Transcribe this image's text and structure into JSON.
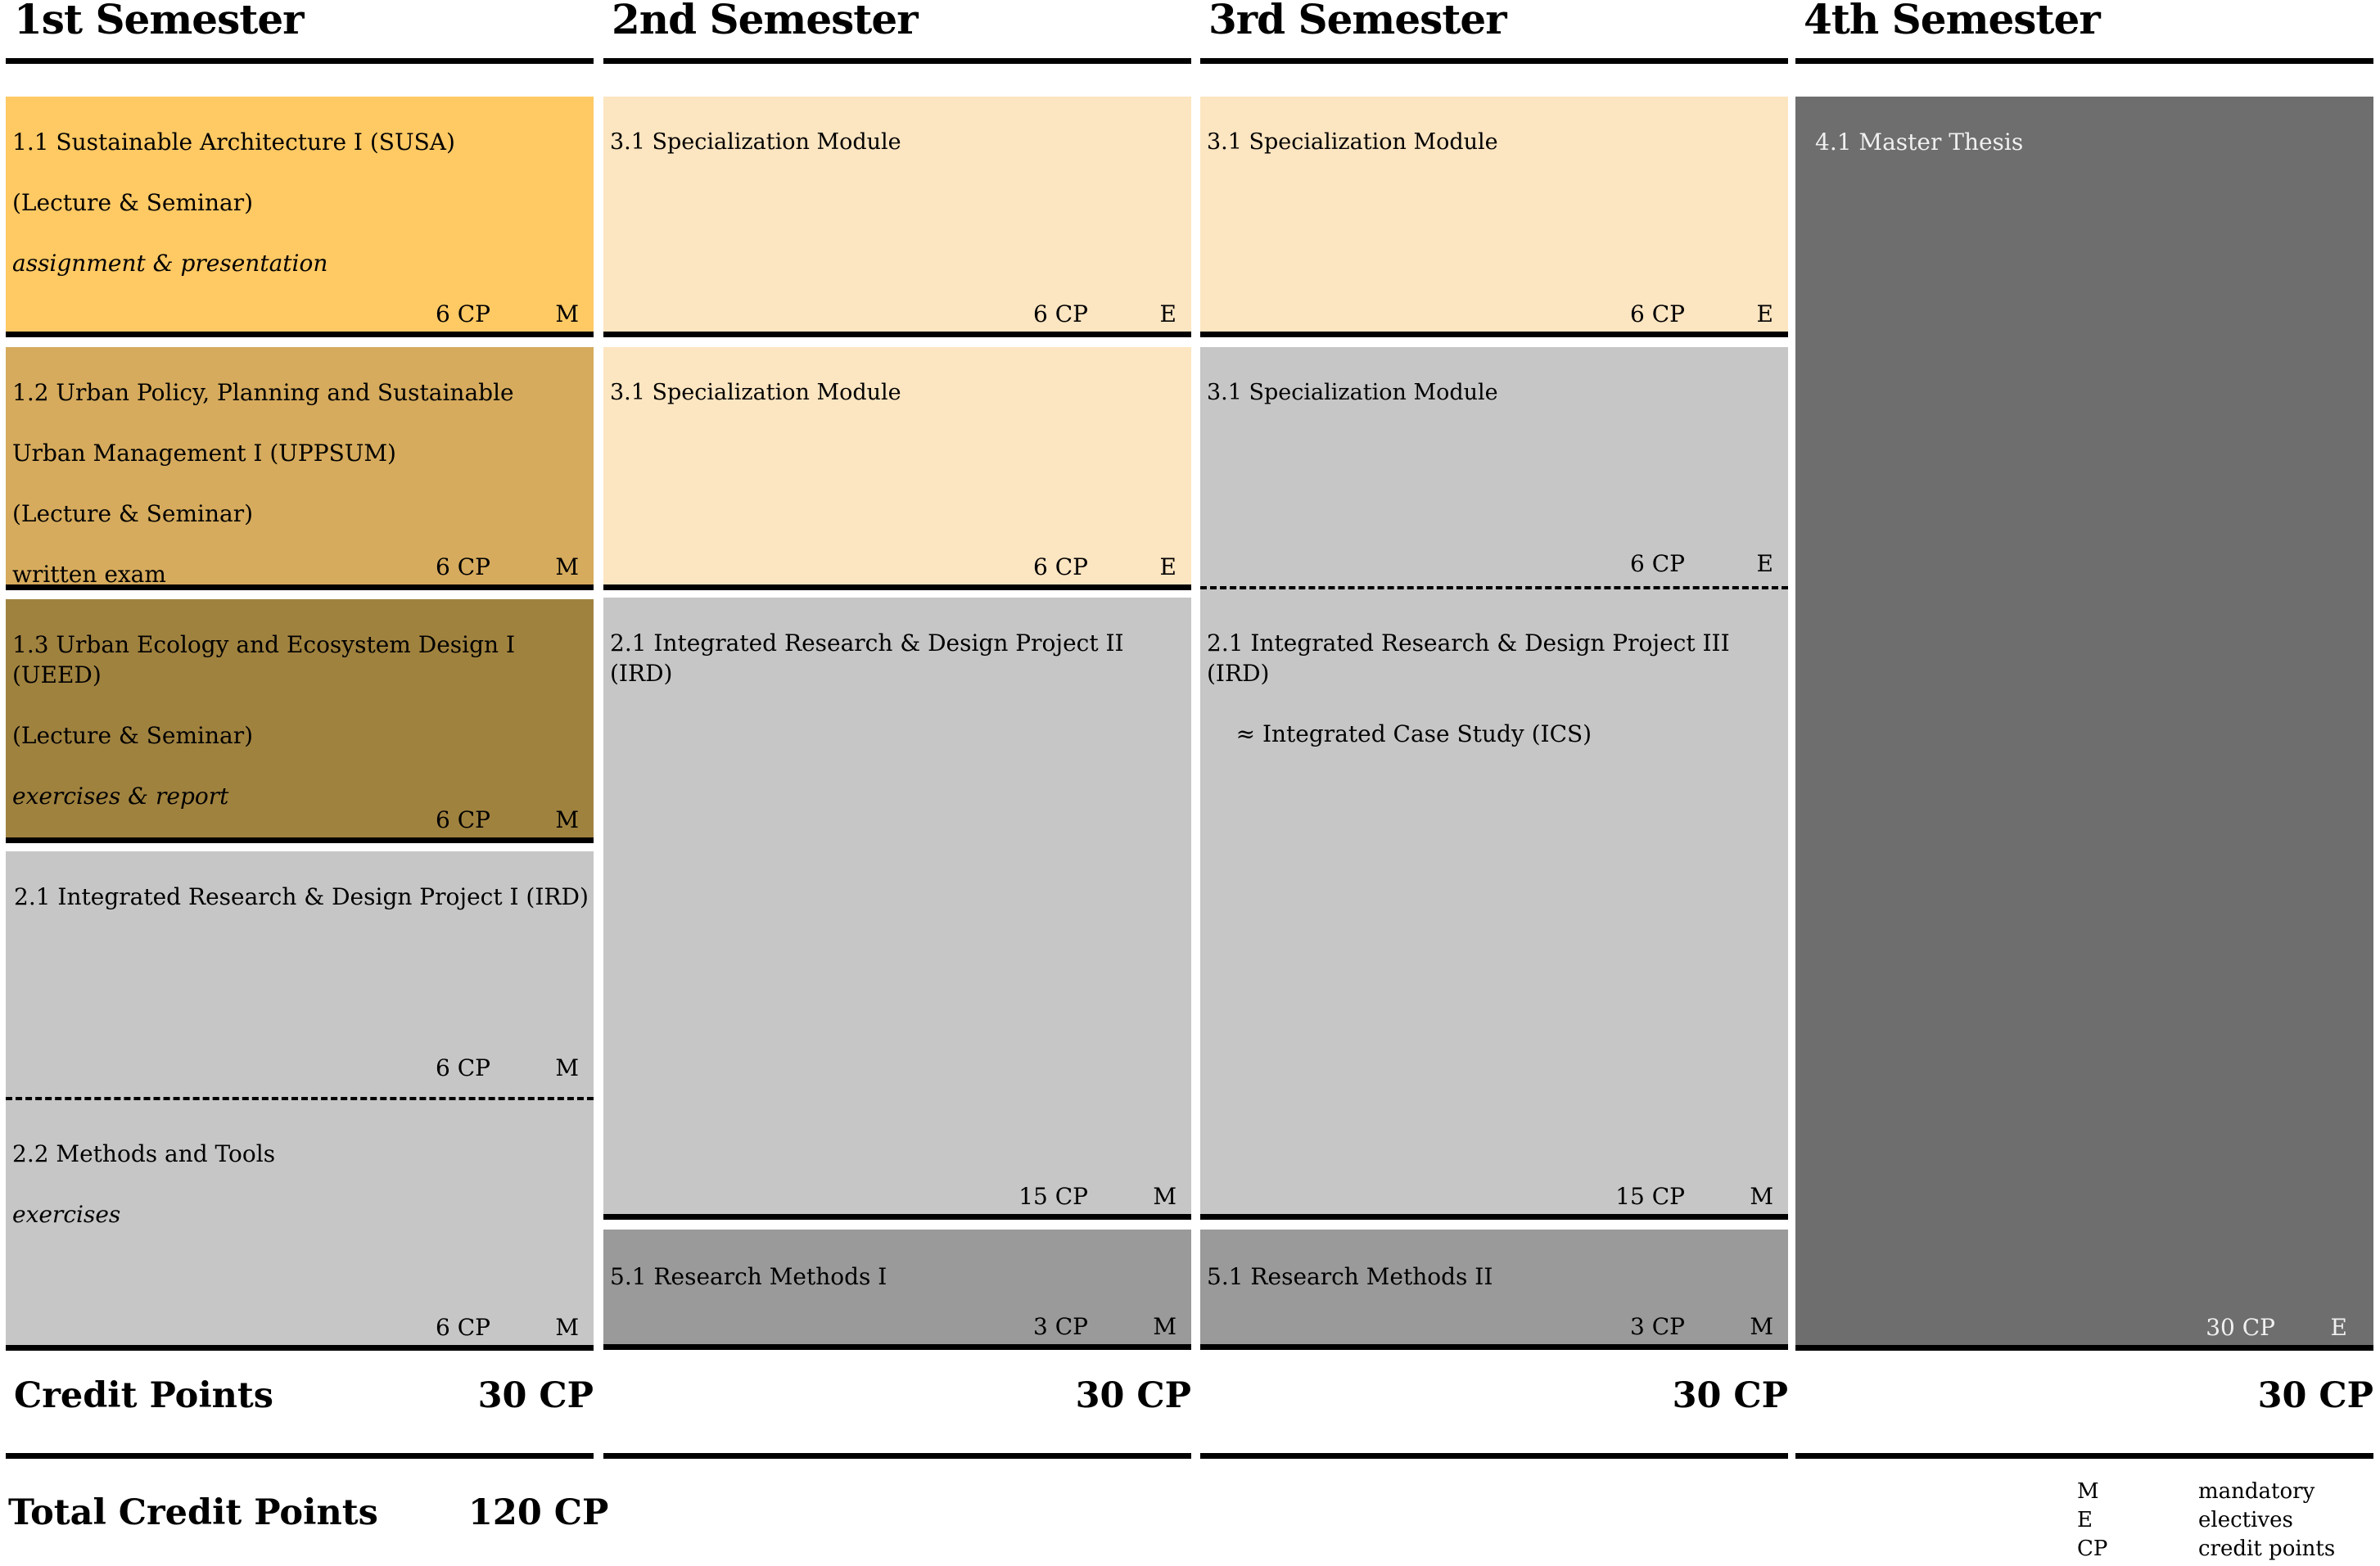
{
  "columns": [
    {
      "header": "1st Semester",
      "credit_label": "Credit Points",
      "credit_value": "30 CP",
      "modules": [
        {
          "lines": [
            "1.1 Sustainable Architecture I (SUSA)",
            "(Lecture & Seminar)"
          ],
          "note": "assignment & presentation",
          "note_italic": true,
          "cp": "6 CP",
          "type": "M",
          "color": "#ffc964"
        },
        {
          "lines": [
            "1.2 Urban Policy, Planning and Sustainable",
            "Urban Management I (UPPSUM)",
            "(Lecture & Seminar)"
          ],
          "note": "written exam",
          "note_italic": false,
          "cp": "6 CP",
          "type": "M",
          "color": "#d6ab5d"
        },
        {
          "lines": [
            "1.3 Urban Ecology and Ecosystem Design I (UEED)",
            "(Lecture  & Seminar)"
          ],
          "note": "exercises & report",
          "note_italic": true,
          "cp": "6 CP",
          "type": "M",
          "color": "#a0823f"
        },
        {
          "lines": [
            "2.1 Integrated Research & Design Project I (IRD)"
          ],
          "note": "",
          "cp": "6  CP",
          "type": "M",
          "color": "#c6c6c6"
        },
        {
          "lines": [
            "2.2 Methods and Tools"
          ],
          "note": "exercises",
          "note_italic": true,
          "cp": "6 CP",
          "type": "M",
          "color": "#c6c6c6"
        }
      ]
    },
    {
      "header": "2nd Semester",
      "credit_value": "30 CP",
      "modules": [
        {
          "lines": [
            "3.1 Specialization Module"
          ],
          "cp": "6 CP",
          "type": "E",
          "color": "#fce5c1"
        },
        {
          "lines": [
            "3.1 Specialization Module"
          ],
          "cp": "6 CP",
          "type": "E",
          "color": "#fce5c1"
        },
        {
          "lines": [
            "2.1 Integrated Research & Design Project II (IRD)"
          ],
          "cp": "15 CP",
          "type": "M",
          "color": "#c6c6c6"
        },
        {
          "lines": [
            "5.1 Research Methods I"
          ],
          "cp": "3 CP",
          "type": "M",
          "color": "#9a9a9a"
        }
      ]
    },
    {
      "header": "3rd Semester",
      "credit_value": "30 CP",
      "modules": [
        {
          "lines": [
            "3.1 Specialization Module"
          ],
          "cp": "6 CP",
          "type": "E",
          "color": "#fce5c1"
        },
        {
          "lines": [
            "3.1 Specialization Module"
          ],
          "cp": "6 CP",
          "type": "E",
          "color": "#c6c6c6"
        },
        {
          "lines": [
            "2.1 Integrated Research & Design Project III (IRD)",
            "    ≈ Integrated Case Study (ICS)"
          ],
          "cp": "15 CP",
          "type": "M",
          "color": "#c6c6c6"
        },
        {
          "lines": [
            "5.1 Research Methods II"
          ],
          "cp": "3 CP",
          "type": "M",
          "color": "#9a9a9a"
        }
      ]
    },
    {
      "header": "4th Semester",
      "credit_value": "30 CP",
      "modules": [
        {
          "lines": [
            "4.1  Master Thesis"
          ],
          "cp": "30 CP",
          "type": "E",
          "color": "#6e6e6e"
        }
      ]
    }
  ],
  "total": {
    "label": "Total Credit Points",
    "value": "120 CP"
  },
  "legend": [
    {
      "abbr": "M",
      "desc": "mandatory"
    },
    {
      "abbr": "E",
      "desc": "electives"
    },
    {
      "abbr": "CP",
      "desc": "credit points"
    }
  ]
}
